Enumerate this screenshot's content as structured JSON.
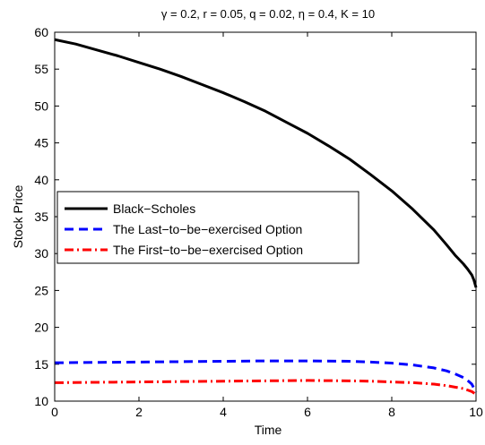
{
  "chart_data": {
    "type": "line",
    "title": "γ = 0.2, r = 0.05, q = 0.02, η = 0.4, K = 10",
    "xlabel": "Time",
    "ylabel": "Stock Price",
    "xlim": [
      0,
      10
    ],
    "ylim": [
      10,
      60
    ],
    "xticks": [
      "0",
      "2",
      "4",
      "6",
      "8",
      "10"
    ],
    "yticks": [
      "10",
      "15",
      "20",
      "25",
      "30",
      "35",
      "40",
      "45",
      "50",
      "55",
      "60"
    ],
    "grid": false,
    "legend_position": "middle-left",
    "series": [
      {
        "name": "Black−Scholes",
        "color": "#000000",
        "style": "solid",
        "x": [
          0,
          0.5,
          1,
          1.5,
          2,
          2.5,
          3,
          3.5,
          4,
          4.5,
          5,
          5.5,
          6,
          6.5,
          7,
          7.5,
          8,
          8.5,
          9,
          9.3,
          9.5,
          9.7,
          9.8,
          9.9,
          9.95,
          10
        ],
        "y": [
          59,
          58.4,
          57.6,
          56.8,
          55.9,
          55.0,
          54.0,
          52.9,
          51.8,
          50.6,
          49.3,
          47.8,
          46.3,
          44.6,
          42.8,
          40.7,
          38.5,
          36.0,
          33.2,
          31.2,
          29.8,
          28.6,
          27.9,
          27.1,
          26.4,
          25.4
        ]
      },
      {
        "name": "The Last−to−be−exercised Option",
        "color": "#0000ff",
        "style": "dashed",
        "x": [
          0,
          1,
          2,
          3,
          4,
          5,
          6,
          7,
          7.5,
          8,
          8.5,
          9,
          9.3,
          9.5,
          9.7,
          9.8,
          9.9,
          10
        ],
        "y": [
          15.2,
          15.25,
          15.3,
          15.35,
          15.4,
          15.45,
          15.45,
          15.4,
          15.3,
          15.15,
          14.9,
          14.5,
          14.1,
          13.7,
          13.2,
          12.8,
          12.3,
          11.2
        ]
      },
      {
        "name": "The First−to−be−exercised Option",
        "color": "#ff0000",
        "style": "dashdot",
        "x": [
          0,
          1,
          2,
          3,
          4,
          5,
          6,
          7,
          7.5,
          8,
          8.5,
          9,
          9.3,
          9.5,
          9.7,
          9.8,
          9.9,
          10
        ],
        "y": [
          12.5,
          12.55,
          12.6,
          12.65,
          12.7,
          12.75,
          12.8,
          12.75,
          12.7,
          12.6,
          12.5,
          12.3,
          12.1,
          11.9,
          11.7,
          11.5,
          11.3,
          10.9
        ]
      }
    ]
  }
}
